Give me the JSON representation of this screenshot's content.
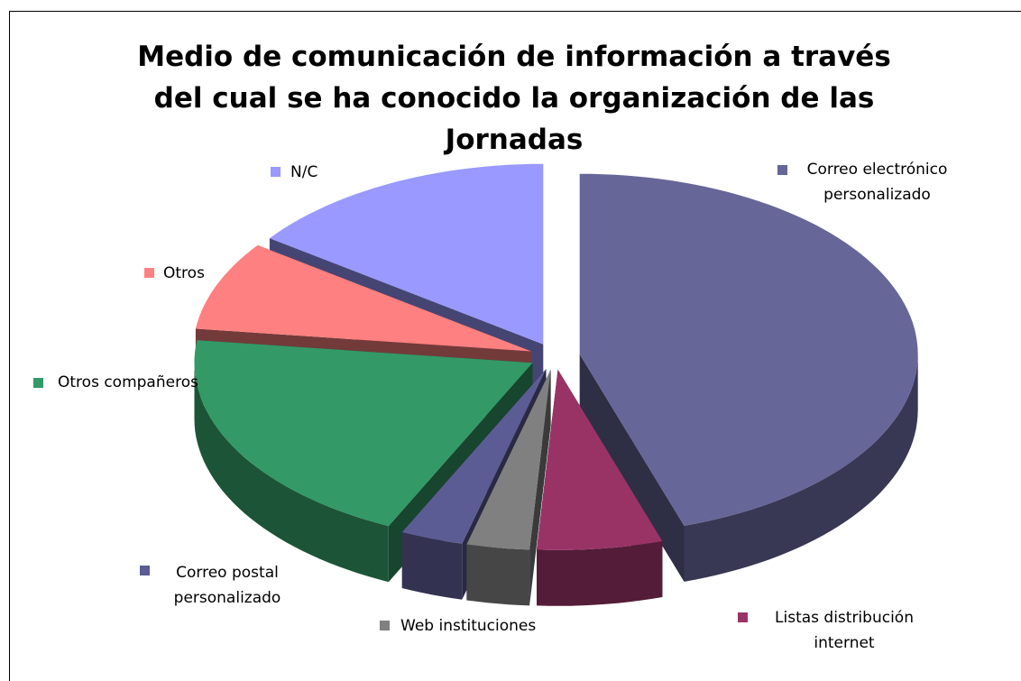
{
  "chart_data": {
    "type": "pie",
    "title": "Medio de comunicación de información a través del cual se ha conocido la organización de las Jornadas",
    "categories": [
      "Correo electrónico personalizado",
      "Listas distribución internet",
      "Web instituciones",
      "Correo postal personalizado",
      "Otros compañeros",
      "Otros",
      "N/C"
    ],
    "values": [
      45,
      6,
      3,
      3,
      20,
      8,
      15
    ],
    "colors": [
      "#666699",
      "#993366",
      "#808080",
      "#5c5c94",
      "#339966",
      "#ff8080",
      "#9999ff"
    ]
  }
}
